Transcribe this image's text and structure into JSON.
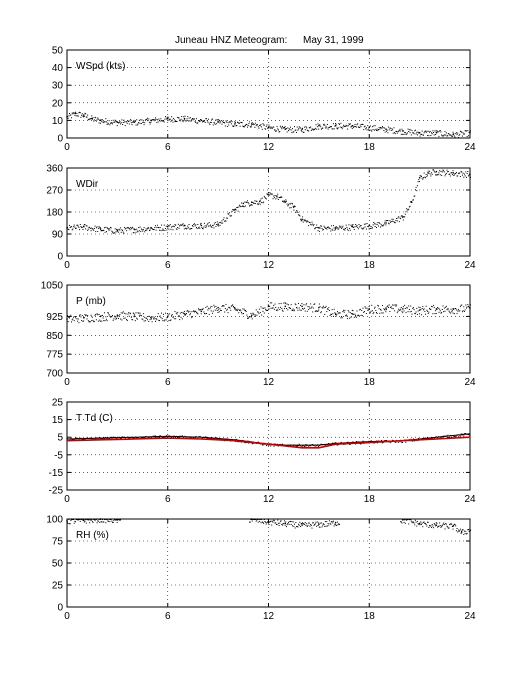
{
  "figure": {
    "title": "Juneau HNZ Meteogram:",
    "date": "May 31, 1999"
  },
  "chart_data": [
    {
      "type": "scatter",
      "label": "WSpd (kts)",
      "xlim": [
        0,
        24
      ],
      "ylim": [
        0,
        50
      ],
      "xticks": [
        0,
        6,
        12,
        18,
        24
      ],
      "yticks": [
        0,
        10,
        20,
        30,
        40,
        50
      ],
      "grid": true,
      "series": [
        {
          "color": "#000000",
          "x": [
            0,
            0.5,
            1,
            1.5,
            2,
            3,
            4,
            5,
            6,
            7,
            8,
            9,
            10,
            11,
            12,
            13,
            14,
            15,
            16,
            17,
            18,
            19,
            20,
            21,
            22,
            23,
            24
          ],
          "y": [
            12,
            14,
            13,
            11,
            10,
            9,
            9,
            10,
            11,
            11,
            10,
            9,
            8,
            8,
            6,
            5,
            5,
            7,
            7,
            7,
            6,
            5,
            4,
            3,
            3,
            2,
            3
          ]
        }
      ]
    },
    {
      "type": "scatter",
      "label": "WDir",
      "xlim": [
        0,
        24
      ],
      "ylim": [
        0,
        360
      ],
      "xticks": [
        0,
        6,
        12,
        18,
        24
      ],
      "yticks": [
        0,
        90,
        180,
        270,
        360
      ],
      "grid": true,
      "series": [
        {
          "color": "#000000",
          "x": [
            0,
            1,
            2,
            3,
            4,
            5,
            6,
            7,
            8,
            9,
            10,
            10.5,
            11,
            11.5,
            12,
            12.5,
            13,
            13.5,
            14,
            15,
            16,
            17,
            18,
            19,
            20,
            20.5,
            21,
            21.5,
            22,
            23,
            24
          ],
          "y": [
            115,
            120,
            110,
            105,
            110,
            115,
            120,
            125,
            125,
            130,
            190,
            215,
            220,
            225,
            250,
            245,
            220,
            200,
            150,
            115,
            115,
            120,
            125,
            135,
            160,
            220,
            320,
            340,
            345,
            340,
            335
          ]
        }
      ]
    },
    {
      "type": "scatter",
      "label": "P (mb)",
      "xlim": [
        0,
        24
      ],
      "ylim": [
        700,
        1050
      ],
      "xticks": [
        0,
        6,
        12,
        18,
        24
      ],
      "yticks": [
        700,
        775,
        850,
        925,
        1050
      ],
      "grid": true,
      "series": [
        {
          "color": "#000000",
          "x": [
            0,
            1,
            2,
            3,
            4,
            5,
            6,
            7,
            8,
            9,
            10,
            11,
            12,
            13,
            14,
            15,
            16,
            17,
            18,
            19,
            20,
            21,
            22,
            23,
            24
          ],
          "y": [
            915,
            920,
            925,
            930,
            925,
            920,
            925,
            935,
            945,
            960,
            955,
            930,
            965,
            965,
            965,
            960,
            935,
            935,
            955,
            958,
            955,
            950,
            955,
            955,
            958
          ]
        }
      ]
    },
    {
      "type": "line",
      "label": "T Td (C)",
      "xlim": [
        0,
        24
      ],
      "ylim": [
        -25,
        25
      ],
      "xticks": [
        0,
        6,
        12,
        18,
        24
      ],
      "yticks": [
        -25,
        -15,
        -5,
        5,
        15,
        25
      ],
      "grid": true,
      "series": [
        {
          "color": "#000000",
          "x": [
            0,
            2,
            4,
            6,
            8,
            10,
            12,
            13,
            14,
            15,
            16,
            18,
            20,
            22,
            24
          ],
          "y": [
            4,
            4.5,
            5,
            5.5,
            5,
            3.5,
            1,
            0.5,
            0.5,
            0.5,
            1.5,
            2.5,
            3,
            5,
            7
          ]
        },
        {
          "color": "#cc0000",
          "x": [
            0,
            2,
            4,
            6,
            8,
            10,
            12,
            13,
            14,
            15,
            16,
            18,
            20,
            22,
            24
          ],
          "y": [
            3,
            3.5,
            4,
            4.5,
            4,
            3,
            1,
            0,
            -1,
            -1,
            1,
            2,
            3,
            4,
            5
          ]
        }
      ]
    },
    {
      "type": "scatter",
      "label": "RH (%)",
      "xlim": [
        0,
        24
      ],
      "ylim": [
        0,
        100
      ],
      "xticks": [
        0,
        6,
        12,
        18,
        24
      ],
      "yticks": [
        0,
        25,
        50,
        75,
        100
      ],
      "grid": true,
      "series": [
        {
          "color": "#000000",
          "x": [
            0,
            1,
            2,
            3,
            11,
            12,
            13,
            14,
            15,
            16,
            20,
            21,
            22,
            23,
            23.5,
            24
          ],
          "y": [
            98,
            99,
            100,
            99,
            100,
            97,
            95,
            93,
            94,
            96,
            99,
            95,
            93,
            92,
            85,
            88
          ]
        }
      ]
    }
  ]
}
